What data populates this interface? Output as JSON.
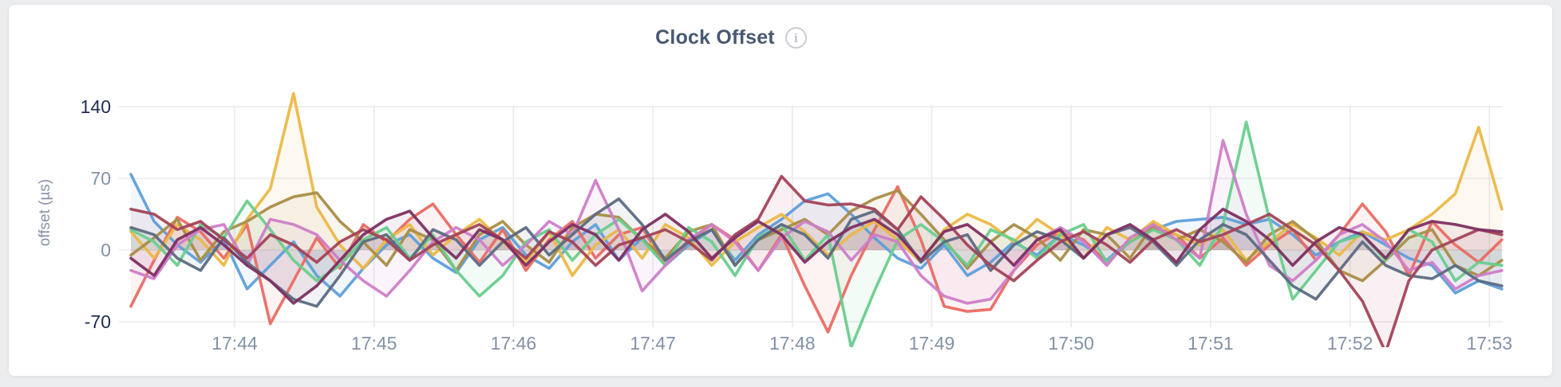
{
  "page": {
    "background": "#ECEDEF"
  },
  "card": {
    "background": "#FFFFFF",
    "border": "#E2E4E7"
  },
  "header": {
    "title": "Clock Offset",
    "info_icon": "i"
  },
  "chart": {
    "ylabel": "offset (µs)",
    "y_ticks": [
      {
        "label": "140",
        "value": 140,
        "emphasis": true
      },
      {
        "label": "70",
        "value": 70,
        "emphasis": false
      },
      {
        "label": "0",
        "value": 0,
        "emphasis": false
      },
      {
        "label": "-70",
        "value": -70,
        "emphasis": true
      }
    ],
    "x_ticks": [
      {
        "label": "17:44",
        "minute": 44
      },
      {
        "label": "17:45",
        "minute": 45
      },
      {
        "label": "17:46",
        "minute": 46
      },
      {
        "label": "17:47",
        "minute": 47
      },
      {
        "label": "17:48",
        "minute": 48
      },
      {
        "label": "17:49",
        "minute": 49
      },
      {
        "label": "17:50",
        "minute": 50
      },
      {
        "label": "17:51",
        "minute": 51
      },
      {
        "label": "17:52",
        "minute": 52
      },
      {
        "label": "17:53",
        "minute": 53
      }
    ],
    "colors": {
      "grid": "#EAEAEC",
      "tick_normal": "#8292A6",
      "tick_emphasis": "#1D2D51",
      "title": "#475872"
    }
  },
  "chart_data": {
    "type": "line",
    "title": "Clock Offset",
    "ylabel": "offset (µs)",
    "unit": "µs",
    "grid": true,
    "legend": "none",
    "ylim": [
      -70,
      140
    ],
    "y_axis_ticks": [
      140,
      70,
      0,
      -70
    ],
    "x_tick_labels": [
      "17:44",
      "17:45",
      "17:46",
      "17:47",
      "17:48",
      "17:49",
      "17:50",
      "17:51",
      "17:52",
      "17:53"
    ],
    "x_start": "17:43:15",
    "x_end": "17:53:05",
    "x_interval_seconds": 10,
    "fill_to_zero": true,
    "series": [
      {
        "id": "blue",
        "color": "#5F9FDA",
        "values": [
          74,
          28,
          5,
          -12,
          10,
          -38,
          -15,
          8,
          -25,
          -45,
          -18,
          5,
          15,
          -8,
          -22,
          10,
          22,
          -5,
          -18,
          8,
          25,
          -10,
          12,
          -15,
          5,
          20,
          -10,
          15,
          30,
          48,
          55,
          35,
          12,
          -8,
          -18,
          5,
          -25,
          -12,
          8,
          -5,
          15,
          5,
          -10,
          10,
          20,
          28,
          30,
          32,
          25,
          30,
          15,
          -5,
          8,
          18,
          5,
          -8,
          -15,
          -42,
          -30,
          -38
        ]
      },
      {
        "id": "red",
        "color": "#E96C64",
        "values": [
          -55,
          -10,
          32,
          18,
          -8,
          25,
          -72,
          -30,
          12,
          -18,
          25,
          8,
          30,
          45,
          15,
          -12,
          20,
          -20,
          10,
          28,
          -8,
          15,
          22,
          -15,
          8,
          25,
          10,
          -20,
          15,
          -35,
          -80,
          -25,
          20,
          62,
          10,
          -55,
          -60,
          -58,
          -20,
          5,
          18,
          10,
          -12,
          8,
          22,
          15,
          -8,
          12,
          -15,
          5,
          20,
          -10,
          15,
          45,
          18,
          -25,
          28,
          5,
          -12,
          10
        ]
      },
      {
        "id": "gold",
        "color": "#EBB844",
        "values": [
          18,
          -8,
          25,
          10,
          -15,
          30,
          60,
          153,
          42,
          5,
          -18,
          10,
          25,
          -5,
          15,
          30,
          8,
          -12,
          18,
          -25,
          5,
          20,
          -8,
          25,
          12,
          -15,
          8,
          22,
          35,
          18,
          -5,
          15,
          28,
          10,
          -12,
          20,
          35,
          25,
          8,
          30,
          15,
          -8,
          22,
          10,
          28,
          15,
          5,
          20,
          -10,
          8,
          25,
          12,
          -5,
          18,
          10,
          20,
          35,
          55,
          120,
          40
        ]
      },
      {
        "id": "olive",
        "color": "#A98D46",
        "values": [
          -5,
          12,
          30,
          -10,
          18,
          28,
          42,
          52,
          56,
          28,
          8,
          -15,
          20,
          10,
          -20,
          15,
          28,
          5,
          -12,
          22,
          35,
          32,
          10,
          -8,
          18,
          25,
          -15,
          10,
          20,
          30,
          15,
          38,
          50,
          58,
          35,
          10,
          -18,
          8,
          25,
          12,
          -10,
          20,
          15,
          -8,
          25,
          10,
          20,
          8,
          -12,
          15,
          28,
          10,
          -20,
          -30,
          -10,
          12,
          20,
          -15,
          -25,
          -10
        ]
      },
      {
        "id": "green",
        "color": "#69CE8D",
        "values": [
          20,
          8,
          -15,
          25,
          12,
          48,
          20,
          -10,
          -30,
          -15,
          10,
          22,
          -8,
          15,
          -20,
          -45,
          -25,
          8,
          20,
          -10,
          15,
          30,
          10,
          -15,
          22,
          8,
          -25,
          12,
          25,
          -10,
          15,
          -95,
          -40,
          10,
          25,
          8,
          -15,
          20,
          10,
          -8,
          15,
          25,
          -12,
          8,
          20,
          10,
          -15,
          25,
          125,
          30,
          -48,
          -20,
          8,
          15,
          -10,
          20,
          8,
          -30,
          -12,
          -15
        ]
      },
      {
        "id": "orchid",
        "color": "#CD7EC8",
        "values": [
          -20,
          -28,
          5,
          20,
          25,
          -15,
          30,
          25,
          15,
          -10,
          -30,
          -45,
          -20,
          8,
          22,
          10,
          -15,
          5,
          28,
          15,
          68,
          20,
          -40,
          -15,
          10,
          25,
          8,
          -20,
          12,
          28,
          18,
          -10,
          15,
          8,
          -25,
          -45,
          -52,
          -48,
          -20,
          10,
          22,
          8,
          -15,
          12,
          25,
          10,
          -8,
          107,
          35,
          -15,
          -30,
          -10,
          15,
          25,
          8,
          -20,
          -12,
          -38,
          -25,
          -20
        ]
      },
      {
        "id": "slate",
        "color": "#5C6B82",
        "values": [
          22,
          15,
          -8,
          -20,
          12,
          -12,
          -30,
          -48,
          -55,
          -25,
          8,
          15,
          -10,
          20,
          10,
          -15,
          8,
          22,
          -5,
          15,
          35,
          50,
          25,
          -10,
          8,
          20,
          -15,
          10,
          25,
          15,
          -8,
          30,
          38,
          20,
          -12,
          8,
          15,
          -20,
          5,
          18,
          10,
          -8,
          15,
          22,
          8,
          -15,
          10,
          25,
          15,
          -10,
          -35,
          -48,
          -20,
          8,
          -15,
          -25,
          -28,
          -15,
          -30,
          -35
        ]
      },
      {
        "id": "maroon",
        "color": "#A34359",
        "values": [
          40,
          35,
          20,
          28,
          10,
          -8,
          15,
          5,
          -12,
          8,
          20,
          10,
          -10,
          5,
          15,
          25,
          10,
          -8,
          18,
          8,
          -15,
          5,
          12,
          20,
          8,
          -10,
          15,
          30,
          72,
          48,
          44,
          45,
          40,
          20,
          52,
          30,
          5,
          -15,
          -30,
          -10,
          8,
          18,
          5,
          -12,
          10,
          20,
          8,
          15,
          25,
          35,
          20,
          5,
          -20,
          -50,
          -100,
          -30,
          0,
          10,
          20,
          15
        ]
      },
      {
        "id": "plum",
        "color": "#7D2F62",
        "values": [
          -8,
          -25,
          10,
          22,
          5,
          -15,
          -30,
          -52,
          -35,
          -10,
          15,
          30,
          38,
          12,
          -8,
          20,
          10,
          -15,
          8,
          25,
          15,
          -10,
          20,
          35,
          18,
          -8,
          12,
          28,
          15,
          -12,
          8,
          22,
          30,
          15,
          -10,
          18,
          25,
          8,
          -15,
          10,
          20,
          -8,
          15,
          25,
          10,
          -12,
          20,
          40,
          28,
          10,
          -15,
          8,
          22,
          15,
          -8,
          20,
          28,
          25,
          20,
          18
        ]
      }
    ]
  }
}
